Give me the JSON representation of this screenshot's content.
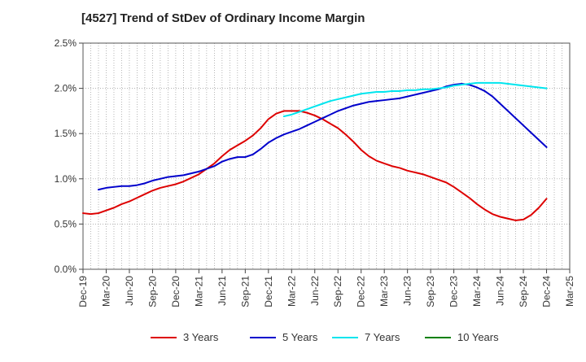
{
  "chart_data": {
    "type": "line",
    "title": "[4527]  Trend of StDev of Ordinary Income Margin",
    "xlabel": "",
    "ylabel": "",
    "x_ticks": [
      "Dec-19",
      "Mar-20",
      "Jun-20",
      "Sep-20",
      "Dec-20",
      "Mar-21",
      "Jun-21",
      "Sep-21",
      "Dec-21",
      "Mar-22",
      "Jun-22",
      "Sep-22",
      "Dec-22",
      "Mar-23",
      "Jun-23",
      "Sep-23",
      "Dec-23",
      "Mar-24",
      "Jun-24",
      "Sep-24",
      "Dec-24",
      "Mar-25"
    ],
    "y_ticks": [
      "0.0%",
      "0.5%",
      "1.0%",
      "1.5%",
      "2.0%",
      "2.5%"
    ],
    "ylim": [
      0,
      2.5
    ],
    "grid": true,
    "legend_position": "bottom",
    "series": [
      {
        "name": "3 Years",
        "color": "#dd0000",
        "values": [
          [
            "Dec-19",
            0.62
          ],
          [
            "Jan-20",
            0.61
          ],
          [
            "Feb-20",
            0.62
          ],
          [
            "Mar-20",
            0.65
          ],
          [
            "Apr-20",
            0.68
          ],
          [
            "May-20",
            0.72
          ],
          [
            "Jun-20",
            0.75
          ],
          [
            "Jul-20",
            0.79
          ],
          [
            "Aug-20",
            0.83
          ],
          [
            "Sep-20",
            0.87
          ],
          [
            "Oct-20",
            0.9
          ],
          [
            "Nov-20",
            0.92
          ],
          [
            "Dec-20",
            0.94
          ],
          [
            "Jan-21",
            0.97
          ],
          [
            "Feb-21",
            1.01
          ],
          [
            "Mar-21",
            1.05
          ],
          [
            "Apr-21",
            1.11
          ],
          [
            "May-21",
            1.17
          ],
          [
            "Jun-21",
            1.25
          ],
          [
            "Jul-21",
            1.32
          ],
          [
            "Aug-21",
            1.37
          ],
          [
            "Sep-21",
            1.42
          ],
          [
            "Oct-21",
            1.48
          ],
          [
            "Nov-21",
            1.56
          ],
          [
            "Dec-21",
            1.66
          ],
          [
            "Jan-22",
            1.72
          ],
          [
            "Feb-22",
            1.75
          ],
          [
            "Mar-22",
            1.75
          ],
          [
            "Apr-22",
            1.75
          ],
          [
            "May-22",
            1.73
          ],
          [
            "Jun-22",
            1.7
          ],
          [
            "Jul-22",
            1.66
          ],
          [
            "Aug-22",
            1.61
          ],
          [
            "Sep-22",
            1.56
          ],
          [
            "Oct-22",
            1.49
          ],
          [
            "Nov-22",
            1.41
          ],
          [
            "Dec-22",
            1.32
          ],
          [
            "Jan-23",
            1.25
          ],
          [
            "Feb-23",
            1.2
          ],
          [
            "Mar-23",
            1.17
          ],
          [
            "Apr-23",
            1.14
          ],
          [
            "May-23",
            1.12
          ],
          [
            "Jun-23",
            1.09
          ],
          [
            "Jul-23",
            1.07
          ],
          [
            "Aug-23",
            1.05
          ],
          [
            "Sep-23",
            1.02
          ],
          [
            "Oct-23",
            0.99
          ],
          [
            "Nov-23",
            0.96
          ],
          [
            "Dec-23",
            0.91
          ],
          [
            "Jan-24",
            0.85
          ],
          [
            "Feb-24",
            0.79
          ],
          [
            "Mar-24",
            0.72
          ],
          [
            "Apr-24",
            0.66
          ],
          [
            "May-24",
            0.61
          ],
          [
            "Jun-24",
            0.58
          ],
          [
            "Jul-24",
            0.56
          ],
          [
            "Aug-24",
            0.54
          ],
          [
            "Sep-24",
            0.55
          ],
          [
            "Oct-24",
            0.6
          ],
          [
            "Nov-24",
            0.68
          ],
          [
            "Dec-24",
            0.78
          ]
        ]
      },
      {
        "name": "5 Years",
        "color": "#0000cc",
        "values": [
          [
            "Feb-20",
            0.88
          ],
          [
            "Mar-20",
            0.9
          ],
          [
            "Apr-20",
            0.91
          ],
          [
            "May-20",
            0.92
          ],
          [
            "Jun-20",
            0.92
          ],
          [
            "Jul-20",
            0.93
          ],
          [
            "Aug-20",
            0.95
          ],
          [
            "Sep-20",
            0.98
          ],
          [
            "Oct-20",
            1.0
          ],
          [
            "Nov-20",
            1.02
          ],
          [
            "Dec-20",
            1.03
          ],
          [
            "Jan-21",
            1.04
          ],
          [
            "Feb-21",
            1.06
          ],
          [
            "Mar-21",
            1.08
          ],
          [
            "Apr-21",
            1.11
          ],
          [
            "May-21",
            1.14
          ],
          [
            "Jun-21",
            1.19
          ],
          [
            "Jul-21",
            1.22
          ],
          [
            "Aug-21",
            1.24
          ],
          [
            "Sep-21",
            1.24
          ],
          [
            "Oct-21",
            1.27
          ],
          [
            "Nov-21",
            1.33
          ],
          [
            "Dec-21",
            1.4
          ],
          [
            "Jan-22",
            1.45
          ],
          [
            "Feb-22",
            1.49
          ],
          [
            "Mar-22",
            1.52
          ],
          [
            "Apr-22",
            1.55
          ],
          [
            "May-22",
            1.59
          ],
          [
            "Jun-22",
            1.63
          ],
          [
            "Jul-22",
            1.67
          ],
          [
            "Aug-22",
            1.71
          ],
          [
            "Sep-22",
            1.75
          ],
          [
            "Oct-22",
            1.78
          ],
          [
            "Nov-22",
            1.81
          ],
          [
            "Dec-22",
            1.83
          ],
          [
            "Jan-23",
            1.85
          ],
          [
            "Feb-23",
            1.86
          ],
          [
            "Mar-23",
            1.87
          ],
          [
            "Apr-23",
            1.88
          ],
          [
            "May-23",
            1.89
          ],
          [
            "Jun-23",
            1.91
          ],
          [
            "Jul-23",
            1.93
          ],
          [
            "Aug-23",
            1.95
          ],
          [
            "Sep-23",
            1.97
          ],
          [
            "Oct-23",
            1.99
          ],
          [
            "Nov-23",
            2.02
          ],
          [
            "Dec-23",
            2.04
          ],
          [
            "Jan-24",
            2.05
          ],
          [
            "Feb-24",
            2.04
          ],
          [
            "Mar-24",
            2.01
          ],
          [
            "Apr-24",
            1.97
          ],
          [
            "May-24",
            1.91
          ],
          [
            "Jun-24",
            1.83
          ],
          [
            "Jul-24",
            1.75
          ],
          [
            "Aug-24",
            1.67
          ],
          [
            "Sep-24",
            1.59
          ],
          [
            "Oct-24",
            1.51
          ],
          [
            "Nov-24",
            1.43
          ],
          [
            "Dec-24",
            1.35
          ]
        ]
      },
      {
        "name": "7 Years",
        "color": "#00e5ee",
        "values": [
          [
            "Feb-22",
            1.69
          ],
          [
            "Mar-22",
            1.71
          ],
          [
            "Apr-22",
            1.74
          ],
          [
            "May-22",
            1.77
          ],
          [
            "Jun-22",
            1.8
          ],
          [
            "Jul-22",
            1.83
          ],
          [
            "Aug-22",
            1.86
          ],
          [
            "Sep-22",
            1.88
          ],
          [
            "Oct-22",
            1.9
          ],
          [
            "Nov-22",
            1.92
          ],
          [
            "Dec-22",
            1.94
          ],
          [
            "Jan-23",
            1.95
          ],
          [
            "Feb-23",
            1.96
          ],
          [
            "Mar-23",
            1.96
          ],
          [
            "Apr-23",
            1.97
          ],
          [
            "May-23",
            1.97
          ],
          [
            "Jun-23",
            1.98
          ],
          [
            "Jul-23",
            1.98
          ],
          [
            "Aug-23",
            1.99
          ],
          [
            "Sep-23",
            1.99
          ],
          [
            "Oct-23",
            2.0
          ],
          [
            "Nov-23",
            2.01
          ],
          [
            "Dec-23",
            2.03
          ],
          [
            "Jan-24",
            2.04
          ],
          [
            "Feb-24",
            2.05
          ],
          [
            "Mar-24",
            2.06
          ],
          [
            "Apr-24",
            2.06
          ],
          [
            "May-24",
            2.06
          ],
          [
            "Jun-24",
            2.06
          ],
          [
            "Jul-24",
            2.05
          ],
          [
            "Aug-24",
            2.04
          ],
          [
            "Sep-24",
            2.03
          ],
          [
            "Oct-24",
            2.02
          ],
          [
            "Nov-24",
            2.01
          ],
          [
            "Dec-24",
            2.0
          ]
        ]
      },
      {
        "name": "10 Years",
        "color": "#008000",
        "values": []
      }
    ]
  }
}
